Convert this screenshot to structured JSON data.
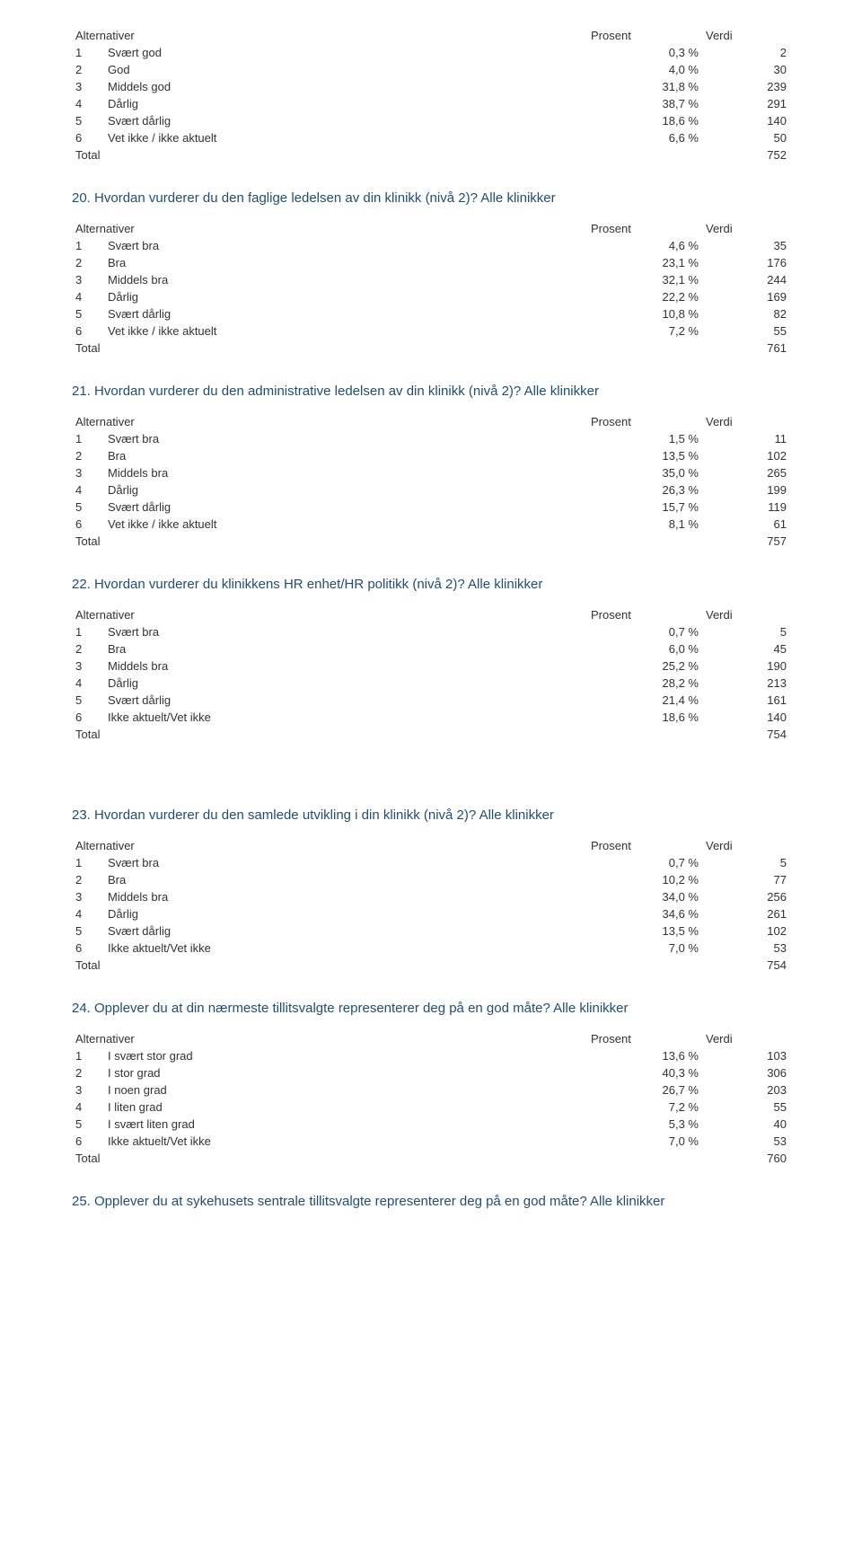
{
  "headers": {
    "alt": "Alternativer",
    "pct": "Prosent",
    "val": "Verdi",
    "total": "Total"
  },
  "colors": {
    "title": "#1f4e79",
    "text": "#333333",
    "background": "#ffffff"
  },
  "sections": [
    {
      "title": "",
      "rows": [
        {
          "n": "1",
          "label": "Svært god",
          "pct": "0,3 %",
          "val": "2"
        },
        {
          "n": "2",
          "label": "God",
          "pct": "4,0 %",
          "val": "30"
        },
        {
          "n": "3",
          "label": "Middels god",
          "pct": "31,8 %",
          "val": "239"
        },
        {
          "n": "4",
          "label": "Dårlig",
          "pct": "38,7 %",
          "val": "291"
        },
        {
          "n": "5",
          "label": "Svært dårlig",
          "pct": "18,6 %",
          "val": "140"
        },
        {
          "n": "6",
          "label": "Vet ikke / ikke aktuelt",
          "pct": "6,6 %",
          "val": "50"
        }
      ],
      "total": "752"
    },
    {
      "title": "20. Hvordan vurderer du den faglige ledelsen av din klinikk (nivå 2)? Alle klinikker",
      "rows": [
        {
          "n": "1",
          "label": "Svært bra",
          "pct": "4,6 %",
          "val": "35"
        },
        {
          "n": "2",
          "label": "Bra",
          "pct": "23,1 %",
          "val": "176"
        },
        {
          "n": "3",
          "label": "Middels bra",
          "pct": "32,1 %",
          "val": "244"
        },
        {
          "n": "4",
          "label": "Dårlig",
          "pct": "22,2 %",
          "val": "169"
        },
        {
          "n": "5",
          "label": "Svært dårlig",
          "pct": "10,8 %",
          "val": "82"
        },
        {
          "n": "6",
          "label": "Vet ikke / ikke aktuelt",
          "pct": "7,2 %",
          "val": "55"
        }
      ],
      "total": "761"
    },
    {
      "title": "21. Hvordan vurderer du den administrative ledelsen av din klinikk (nivå 2)? Alle klinikker",
      "rows": [
        {
          "n": "1",
          "label": "Svært bra",
          "pct": "1,5 %",
          "val": "11"
        },
        {
          "n": "2",
          "label": "Bra",
          "pct": "13,5 %",
          "val": "102"
        },
        {
          "n": "3",
          "label": "Middels bra",
          "pct": "35,0 %",
          "val": "265"
        },
        {
          "n": "4",
          "label": "Dårlig",
          "pct": "26,3 %",
          "val": "199"
        },
        {
          "n": "5",
          "label": "Svært dårlig",
          "pct": "15,7 %",
          "val": "119"
        },
        {
          "n": "6",
          "label": "Vet ikke / ikke aktuelt",
          "pct": "8,1 %",
          "val": "61"
        }
      ],
      "total": "757"
    },
    {
      "title": "22. Hvordan vurderer du klinikkens HR enhet/HR politikk (nivå 2)? Alle klinikker",
      "rows": [
        {
          "n": "1",
          "label": "Svært bra",
          "pct": "0,7 %",
          "val": "5"
        },
        {
          "n": "2",
          "label": "Bra",
          "pct": "6,0 %",
          "val": "45"
        },
        {
          "n": "3",
          "label": "Middels bra",
          "pct": "25,2 %",
          "val": "190"
        },
        {
          "n": "4",
          "label": "Dårlig",
          "pct": "28,2 %",
          "val": "213"
        },
        {
          "n": "5",
          "label": "Svært dårlig",
          "pct": "21,4 %",
          "val": "161"
        },
        {
          "n": "6",
          "label": "Ikke aktuelt/Vet ikke",
          "pct": "18,6 %",
          "val": "140"
        }
      ],
      "total": "754",
      "extra_gap": true
    },
    {
      "title": "23. Hvordan vurderer du den samlede utvikling i din klinikk (nivå 2)? Alle klinikker",
      "rows": [
        {
          "n": "1",
          "label": "Svært bra",
          "pct": "0,7 %",
          "val": "5"
        },
        {
          "n": "2",
          "label": "Bra",
          "pct": "10,2 %",
          "val": "77"
        },
        {
          "n": "3",
          "label": "Middels bra",
          "pct": "34,0 %",
          "val": "256"
        },
        {
          "n": "4",
          "label": "Dårlig",
          "pct": "34,6 %",
          "val": "261"
        },
        {
          "n": "5",
          "label": "Svært dårlig",
          "pct": "13,5 %",
          "val": "102"
        },
        {
          "n": "6",
          "label": "Ikke aktuelt/Vet ikke",
          "pct": "7,0 %",
          "val": "53"
        }
      ],
      "total": "754"
    },
    {
      "title": "24. Opplever du at din nærmeste tillitsvalgte representerer deg på en god måte? Alle klinikker",
      "rows": [
        {
          "n": "1",
          "label": "I svært stor grad",
          "pct": "13,6 %",
          "val": "103"
        },
        {
          "n": "2",
          "label": "I stor grad",
          "pct": "40,3 %",
          "val": "306"
        },
        {
          "n": "3",
          "label": "I noen grad",
          "pct": "26,7 %",
          "val": "203"
        },
        {
          "n": "4",
          "label": "I liten grad",
          "pct": "7,2 %",
          "val": "55"
        },
        {
          "n": "5",
          "label": "I svært liten grad",
          "pct": "5,3 %",
          "val": "40"
        },
        {
          "n": "6",
          "label": "Ikke aktuelt/Vet ikke",
          "pct": "7,0 %",
          "val": "53"
        }
      ],
      "total": "760"
    },
    {
      "title": "25. Opplever du at sykehusets sentrale tillitsvalgte representerer deg på en god måte? Alle klinikker",
      "rows": [],
      "total": ""
    }
  ]
}
